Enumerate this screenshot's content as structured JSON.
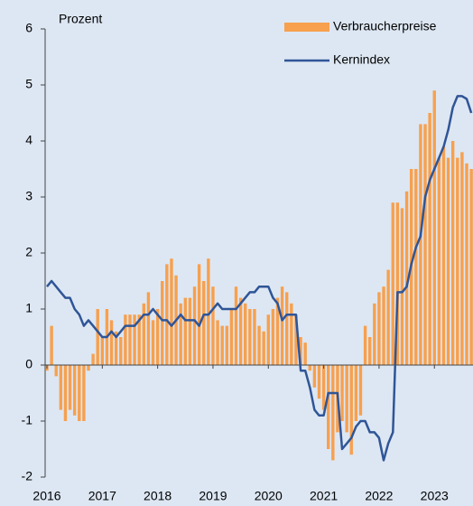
{
  "chart_data": {
    "type": "bar_line",
    "y_label": "Prozent",
    "categories": [
      "2016",
      null,
      null,
      null,
      null,
      null,
      null,
      null,
      null,
      null,
      null,
      null,
      "2017",
      null,
      null,
      null,
      null,
      null,
      null,
      null,
      null,
      null,
      null,
      null,
      "2018",
      null,
      null,
      null,
      null,
      null,
      null,
      null,
      null,
      null,
      null,
      null,
      "2019",
      null,
      null,
      null,
      null,
      null,
      null,
      null,
      null,
      null,
      null,
      null,
      "2020",
      null,
      null,
      null,
      null,
      null,
      null,
      null,
      null,
      null,
      null,
      null,
      "2021",
      null,
      null,
      null,
      null,
      null,
      null,
      null,
      null,
      null,
      null,
      null,
      "2022",
      null,
      null,
      null,
      null,
      null,
      null,
      null,
      null,
      null,
      null,
      null,
      "2023",
      null,
      null,
      null,
      null,
      null,
      null,
      null,
      null
    ],
    "series": [
      {
        "name": "Verbraucherpreise",
        "type": "bar",
        "color": "#f7a04e",
        "values": [
          -0.1,
          0.7,
          -0.2,
          -0.8,
          -1.0,
          -0.8,
          -0.9,
          -1.0,
          -1.0,
          -0.1,
          0.2,
          1.0,
          0.5,
          1.0,
          0.8,
          0.6,
          0.5,
          0.9,
          0.9,
          0.9,
          0.9,
          1.1,
          1.3,
          0.8,
          1.0,
          1.5,
          1.8,
          1.9,
          1.6,
          1.1,
          1.2,
          1.2,
          1.4,
          1.8,
          1.5,
          1.9,
          1.4,
          0.8,
          0.7,
          0.7,
          1.0,
          1.4,
          1.2,
          1.1,
          1.0,
          1.0,
          0.7,
          0.6,
          0.9,
          1.0,
          1.2,
          1.4,
          1.3,
          1.1,
          0.9,
          0.5,
          0.4,
          -0.1,
          -0.4,
          -0.6,
          -0.8,
          -1.5,
          -1.7,
          -1.2,
          -1.0,
          -1.2,
          -1.6,
          -1.0,
          -0.9,
          0.7,
          0.5,
          1.1,
          1.3,
          1.4,
          1.7,
          2.9,
          2.9,
          2.8,
          3.1,
          3.5,
          3.5,
          4.3,
          4.3,
          4.5,
          4.9,
          3.7,
          3.9,
          3.7,
          4.0,
          3.7,
          3.8,
          3.6,
          3.5
        ]
      },
      {
        "name": "Kernindex",
        "type": "line",
        "color": "#2f5597",
        "values": [
          1.4,
          1.5,
          1.4,
          1.3,
          1.2,
          1.2,
          1.0,
          0.9,
          0.7,
          0.8,
          0.7,
          0.6,
          0.5,
          0.5,
          0.6,
          0.5,
          0.6,
          0.7,
          0.7,
          0.7,
          0.8,
          0.9,
          0.9,
          1.0,
          0.9,
          0.8,
          0.8,
          0.7,
          0.8,
          0.9,
          0.8,
          0.8,
          0.8,
          0.7,
          0.9,
          0.9,
          1.0,
          1.1,
          1.0,
          1.0,
          1.0,
          1.0,
          1.1,
          1.2,
          1.3,
          1.3,
          1.4,
          1.4,
          1.4,
          1.2,
          1.1,
          0.8,
          0.9,
          0.9,
          0.9,
          -0.1,
          -0.1,
          -0.4,
          -0.8,
          -0.9,
          -0.9,
          -0.5,
          -0.5,
          -0.5,
          -1.5,
          -1.4,
          -1.3,
          -1.1,
          -1.0,
          -1.0,
          -1.2,
          -1.2,
          -1.3,
          -1.7,
          -1.4,
          -1.2,
          1.3,
          1.3,
          1.4,
          1.8,
          2.1,
          2.3,
          3.0,
          3.3,
          3.5,
          3.7,
          3.9,
          4.2,
          4.6,
          4.8,
          4.8,
          4.75,
          4.5
        ]
      }
    ],
    "ylim": [
      -2,
      6
    ],
    "yticks": [
      -2,
      -1,
      0,
      1,
      2,
      3,
      4,
      5,
      6
    ],
    "legend": "upper right"
  }
}
